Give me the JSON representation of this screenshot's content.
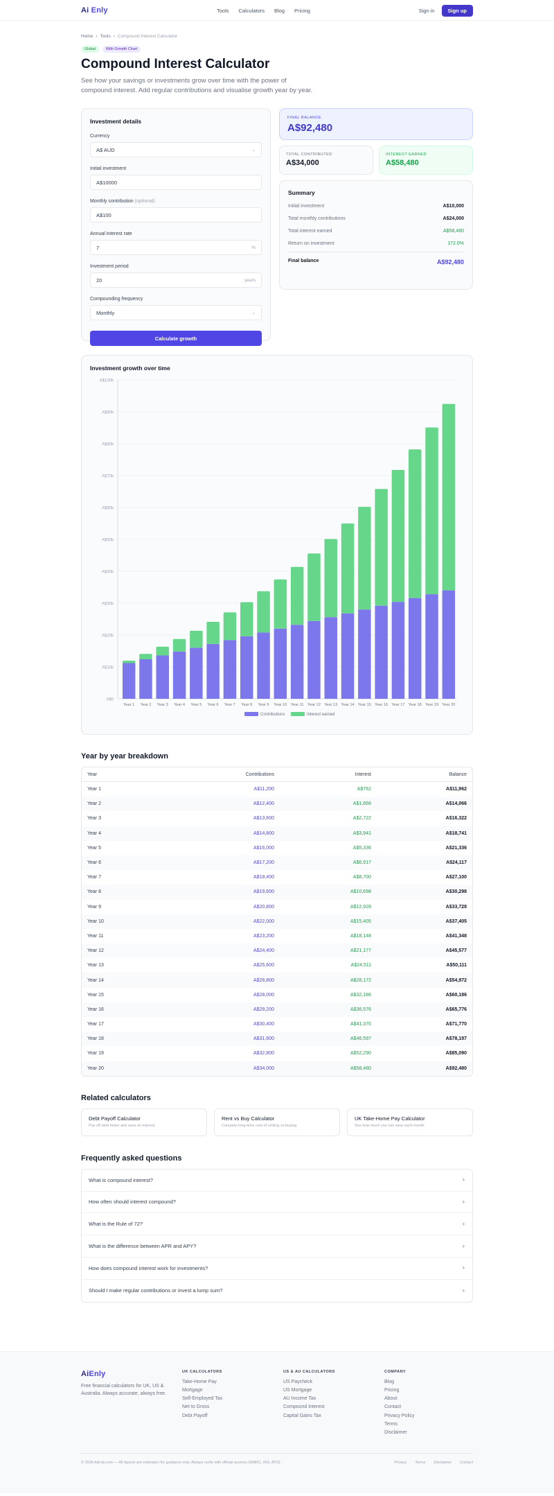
{
  "nav": {
    "logo_ai": "Ai",
    "logo_name": "Enly",
    "links": [
      "Tools",
      "Calculators",
      "Blog",
      "Pricing"
    ],
    "sign_in": "Sign in",
    "sign_up": "Sign up"
  },
  "breadcrumb": [
    "Home",
    "Tools",
    "Compound Interest Calculator"
  ],
  "badges": [
    "Global",
    "With Growth Chart"
  ],
  "title": "Compound Interest Calculator",
  "lede": "See how your savings or investments grow over time with the power of compound interest. Add regular contributions and visualise growth year by year.",
  "form": {
    "title": "Investment details",
    "currency_label": "Currency",
    "currency_value": "A$ AUD",
    "initial_label": "Initial investment",
    "initial_value": "A$10000",
    "monthly_label": "Monthly contribution",
    "monthly_optional": "(optional)",
    "monthly_value": "A$100",
    "rate_label": "Annual interest rate",
    "rate_value": "7",
    "rate_suffix": "%",
    "period_label": "Investment period",
    "period_value": "20",
    "period_suffix": "years",
    "frequency_label": "Compounding frequency",
    "frequency_value": "Monthly",
    "button": "Calculate growth"
  },
  "results": {
    "final_balance_label": "FINAL BALANCE",
    "final_balance": "A$92,480",
    "total_contributed_label": "TOTAL CONTRIBUTED",
    "total_contributed": "A$34,000",
    "interest_earned_label": "INTEREST EARNED",
    "interest_earned": "A$58,480"
  },
  "summary": {
    "title": "Summary",
    "rows": [
      {
        "label": "Initial investment",
        "value": "A$10,000"
      },
      {
        "label": "Total monthly contributions",
        "value": "A$24,000"
      },
      {
        "label": "Total interest earned",
        "value": "A$58,480"
      },
      {
        "label": "Return on investment",
        "value": "172.0%"
      }
    ],
    "final_label": "Final balance",
    "final_value": "A$92,480"
  },
  "chart_data": {
    "type": "bar",
    "stacked": true,
    "title": "Investment growth over time",
    "categories": [
      "Year 1",
      "Year 2",
      "Year 3",
      "Year 4",
      "Year 5",
      "Year 6",
      "Year 7",
      "Year 8",
      "Year 9",
      "Year 10",
      "Year 11",
      "Year 12",
      "Year 13",
      "Year 14",
      "Year 15",
      "Year 16",
      "Year 17",
      "Year 18",
      "Year 19",
      "Year 20"
    ],
    "series": [
      {
        "name": "Contributions",
        "color": "#7c77ea",
        "values": [
          11200,
          12400,
          13600,
          14800,
          16000,
          17200,
          18400,
          19600,
          20800,
          22000,
          23200,
          24400,
          25600,
          26800,
          28000,
          29200,
          30400,
          31600,
          32800,
          34000
        ]
      },
      {
        "name": "Interest earned",
        "color": "#66d68a",
        "values": [
          762,
          1666,
          2722,
          3941,
          5336,
          6917,
          8700,
          10698,
          12928,
          15405,
          18148,
          21177,
          24511,
          28172,
          32186,
          36576,
          41370,
          46597,
          52290,
          58480
        ]
      }
    ],
    "ylim": [
      0,
      100000
    ],
    "yticks": [
      0,
      10000,
      20000,
      30000,
      40000,
      50000,
      60000,
      70000,
      80000,
      90000,
      100000
    ],
    "ytick_labels": [
      "A$0",
      "A$10k",
      "A$20k",
      "A$30k",
      "A$40k",
      "A$50k",
      "A$60k",
      "A$70k",
      "A$80k",
      "A$90k",
      "A$100k"
    ],
    "grid": true,
    "legend": "bottom-center"
  },
  "breakdown": {
    "title": "Year by year breakdown",
    "headers": [
      "Year",
      "Contributions",
      "Interest",
      "Balance"
    ],
    "rows": [
      [
        "Year 1",
        "A$11,200",
        "A$762",
        "A$11,962"
      ],
      [
        "Year 2",
        "A$12,400",
        "A$1,666",
        "A$14,066"
      ],
      [
        "Year 3",
        "A$13,600",
        "A$2,722",
        "A$16,322"
      ],
      [
        "Year 4",
        "A$14,800",
        "A$3,941",
        "A$18,741"
      ],
      [
        "Year 5",
        "A$16,000",
        "A$5,336",
        "A$21,336"
      ],
      [
        "Year 6",
        "A$17,200",
        "A$6,917",
        "A$24,117"
      ],
      [
        "Year 7",
        "A$18,400",
        "A$8,700",
        "A$27,100"
      ],
      [
        "Year 8",
        "A$19,600",
        "A$10,698",
        "A$30,298"
      ],
      [
        "Year 9",
        "A$20,800",
        "A$12,928",
        "A$33,728"
      ],
      [
        "Year 10",
        "A$22,000",
        "A$15,405",
        "A$37,405"
      ],
      [
        "Year 11",
        "A$23,200",
        "A$18,148",
        "A$41,348"
      ],
      [
        "Year 12",
        "A$24,400",
        "A$21,177",
        "A$45,577"
      ],
      [
        "Year 13",
        "A$25,600",
        "A$24,511",
        "A$50,111"
      ],
      [
        "Year 14",
        "A$26,800",
        "A$28,172",
        "A$54,972"
      ],
      [
        "Year 15",
        "A$28,000",
        "A$32,186",
        "A$60,186"
      ],
      [
        "Year 16",
        "A$29,200",
        "A$36,576",
        "A$65,776"
      ],
      [
        "Year 17",
        "A$30,400",
        "A$41,370",
        "A$71,770"
      ],
      [
        "Year 18",
        "A$31,600",
        "A$46,597",
        "A$78,197"
      ],
      [
        "Year 19",
        "A$32,800",
        "A$52,290",
        "A$85,090"
      ],
      [
        "Year 20",
        "A$34,000",
        "A$58,480",
        "A$92,480"
      ]
    ]
  },
  "related": {
    "title": "Related calculators",
    "items": [
      {
        "title": "Debt Payoff Calculator",
        "desc": "Pay off debt faster and save on interest"
      },
      {
        "title": "Rent vs Buy Calculator",
        "desc": "Compare long-term cost of renting vs buying"
      },
      {
        "title": "UK Take-Home Pay Calculator",
        "desc": "See how much you can save each month"
      }
    ]
  },
  "faq": {
    "title": "Frequently asked questions",
    "items": [
      "What is compound interest?",
      "How often should interest compound?",
      "What is the Rule of 72?",
      "What is the difference between APR and APY?",
      "How does compound interest work for investments?",
      "Should I make regular contributions or invest a lump sum?"
    ],
    "toggle": "+"
  },
  "footer": {
    "logo_ai": "Ai",
    "logo_name": "Enly",
    "desc": "Free financial calculators for UK, US & Australia. Always accurate, always free.",
    "columns": [
      {
        "head": "UK CALCULATORS",
        "items": [
          "Take-Home Pay",
          "Mortgage",
          "Self-Employed Tax",
          "Net to Gross",
          "Debt Payoff"
        ]
      },
      {
        "head": "US & AU CALCULATORS",
        "items": [
          "US Paycheck",
          "US Mortgage",
          "AU Income Tax",
          "Compound Interest",
          "Capital Gains Tax"
        ]
      },
      {
        "head": "COMPANY",
        "items": [
          "Blog",
          "Pricing",
          "About",
          "Contact",
          "Privacy Policy",
          "Terms",
          "Disclaimer"
        ]
      }
    ],
    "copyright": "© 2026 AiEnly.com — All figures are estimates for guidance only. Always verify with official sources (HMRC, IRS, ATO).",
    "legal": [
      "Privacy",
      "Terms",
      "Disclaimer",
      "Contact"
    ]
  }
}
